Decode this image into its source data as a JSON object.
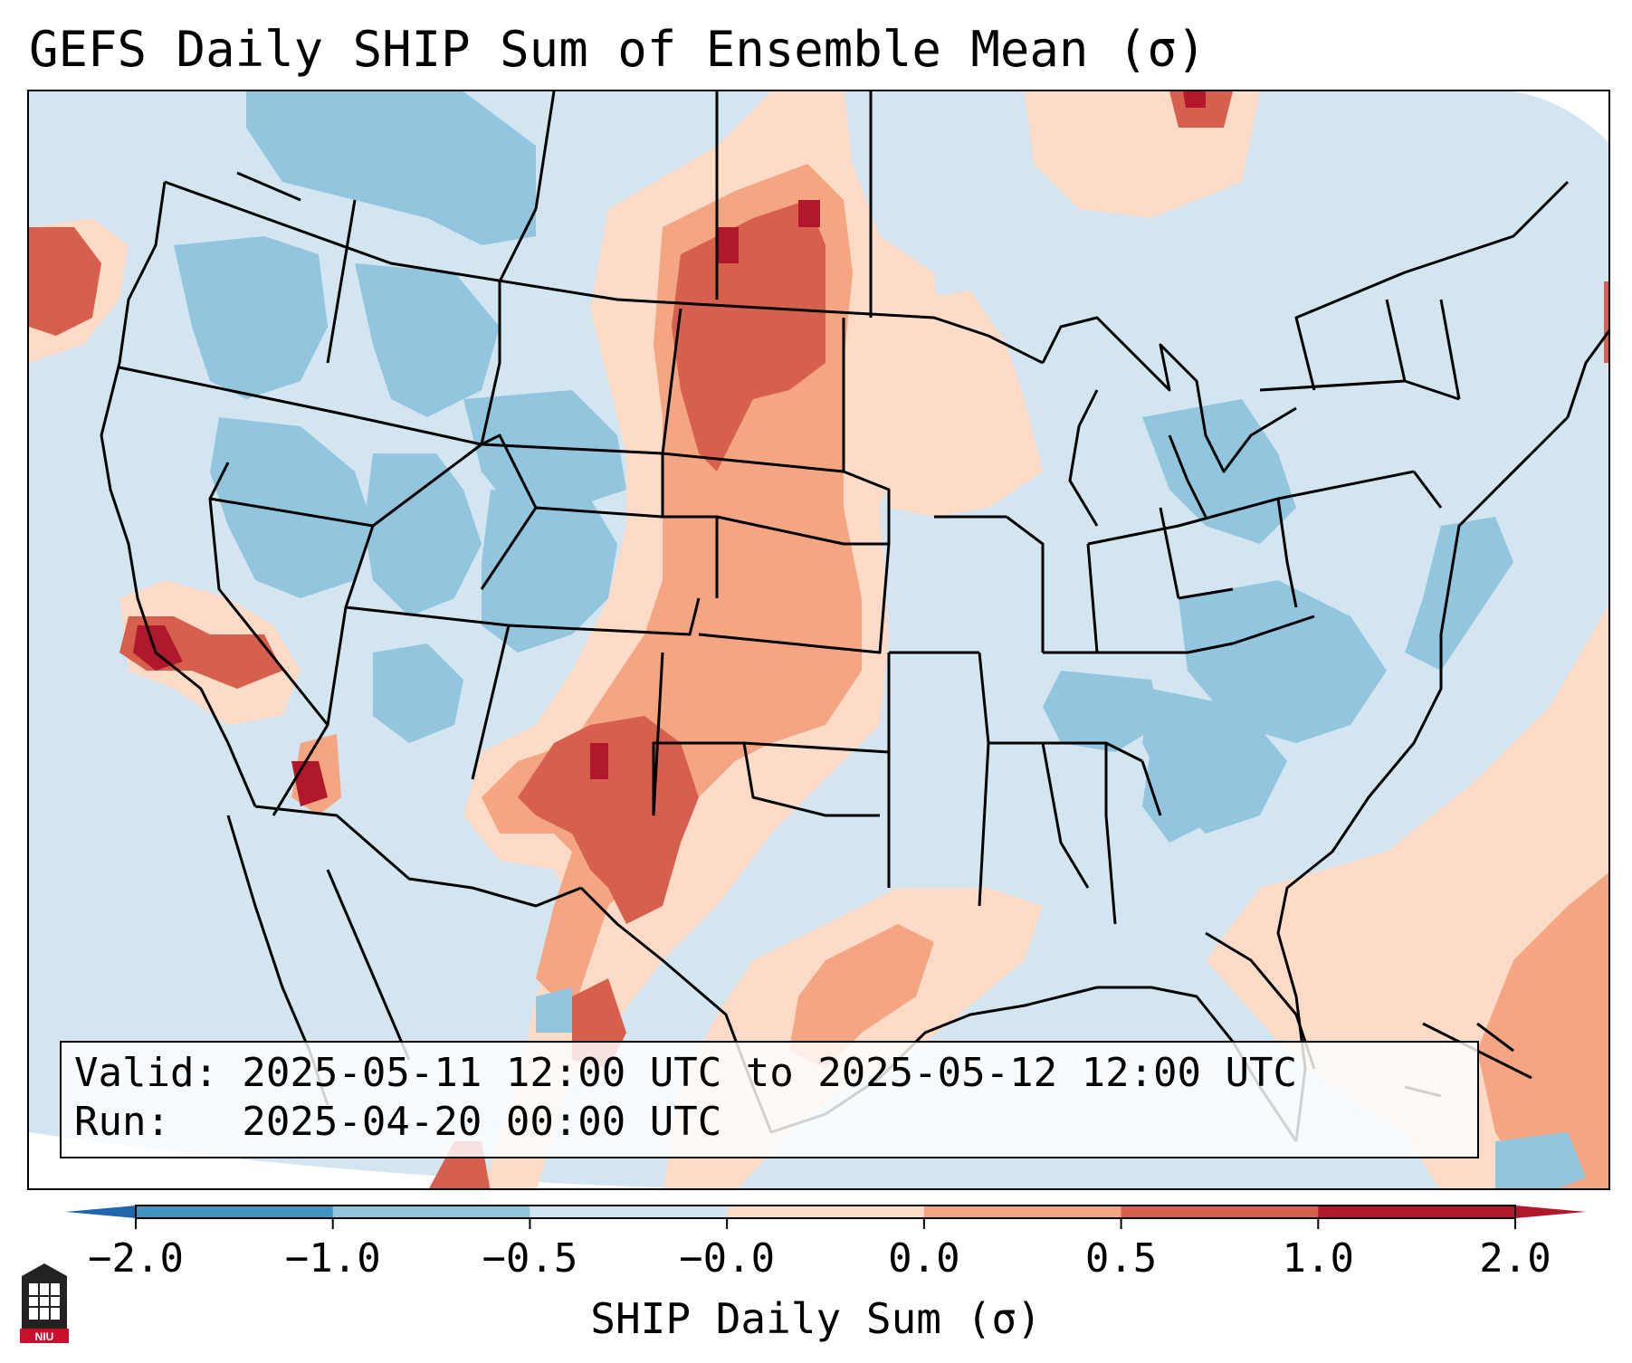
{
  "title": "GEFS Daily SHIP Sum of Ensemble Mean (σ)",
  "info": {
    "valid_line": "Valid: 2025-05-11 12:00 UTC to 2025-05-12 12:00 UTC",
    "run_line": "Run:   2025-04-20 00:00 UTC"
  },
  "colorbar": {
    "label": "SHIP Daily Sum (σ)",
    "ticks": [
      "−2.0",
      "−1.0",
      "−0.5",
      "−0.0",
      "0.0",
      "0.5",
      "1.0",
      "2.0"
    ],
    "colors": [
      "#4393c3",
      "#92c5de",
      "#d1e5f0",
      "#fddbc7",
      "#f4a582",
      "#d6604d",
      "#b2182b"
    ],
    "under_color": "#2166ac",
    "over_color": "#b2182b"
  },
  "map": {
    "projection": "Lambert Conformal",
    "region": "Contiguous United States",
    "background_color": "#d2e5f0"
  },
  "logo": {
    "text": "NIU",
    "icon": "niu-logo-icon"
  }
}
